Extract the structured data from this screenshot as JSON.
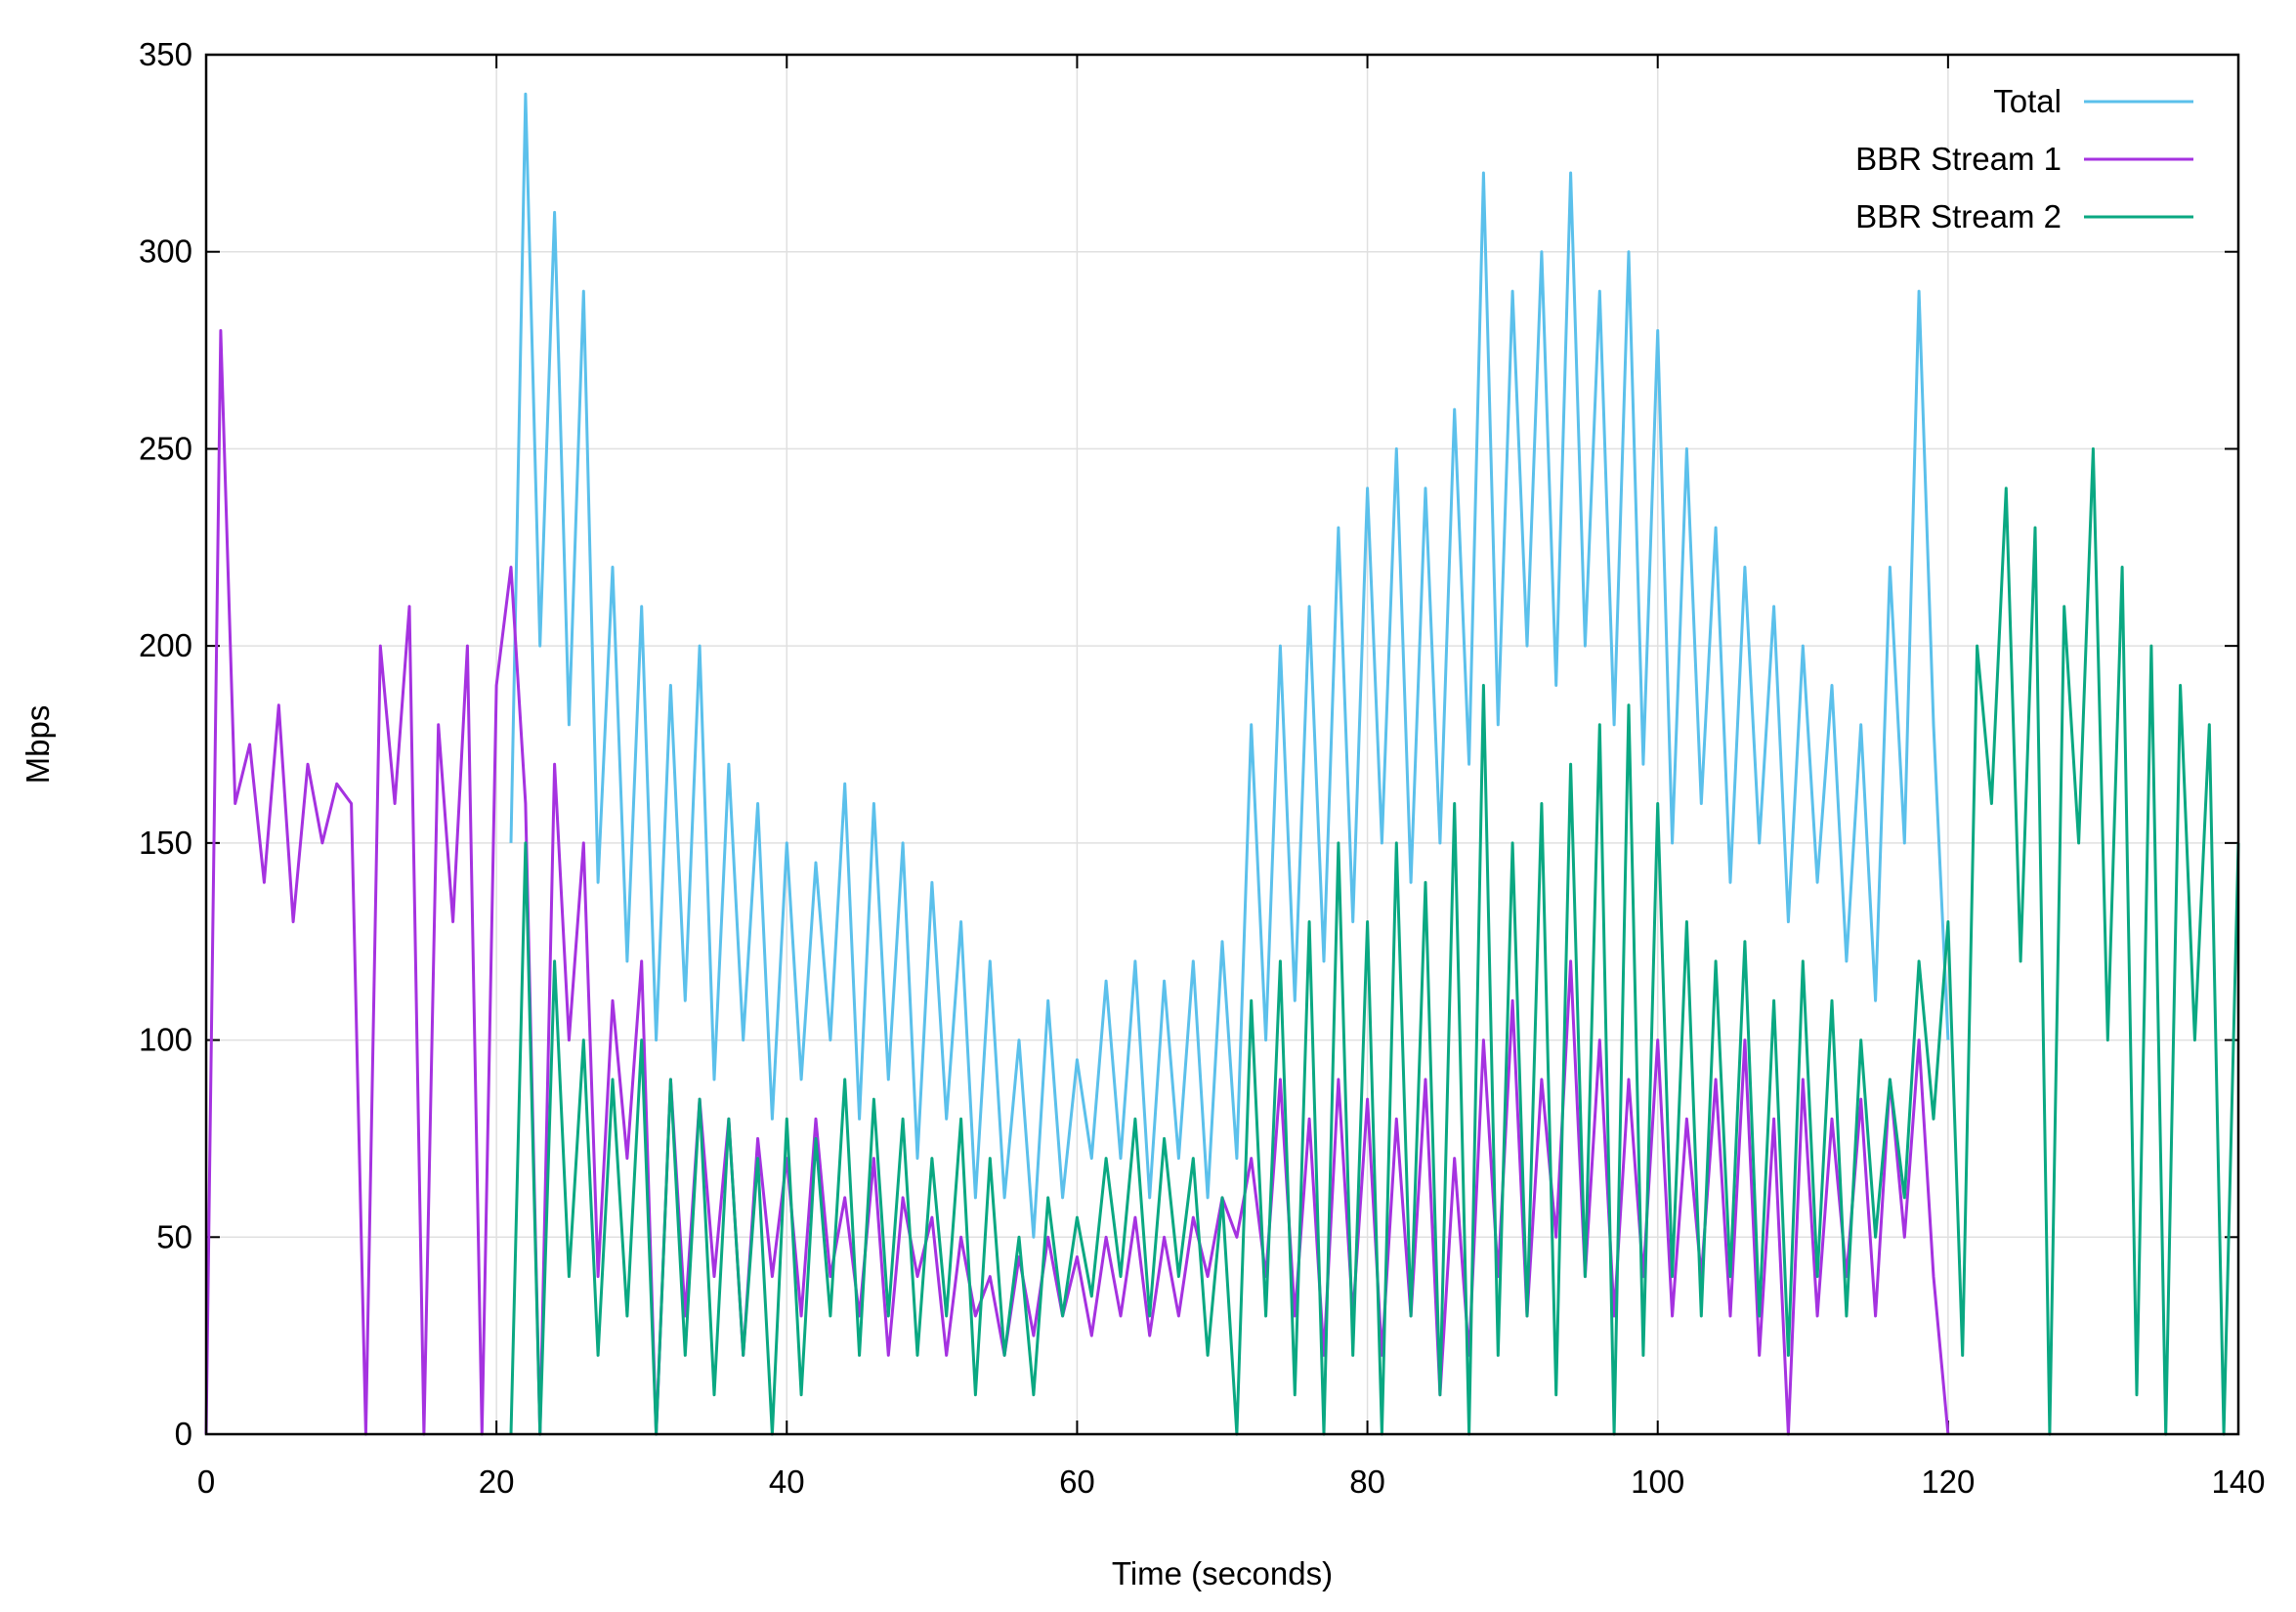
{
  "chart_data": {
    "type": "line",
    "xlabel": "Time (seconds)",
    "ylabel": "Mbps",
    "xlim": [
      0,
      140
    ],
    "ylim": [
      0,
      350
    ],
    "xticks": [
      0,
      20,
      40,
      60,
      80,
      100,
      120,
      140
    ],
    "yticks": [
      0,
      50,
      100,
      150,
      200,
      250,
      300,
      350
    ],
    "grid": true,
    "legend": "upper right",
    "x": [
      0,
      1,
      2,
      3,
      4,
      5,
      6,
      7,
      8,
      9,
      10,
      11,
      12,
      13,
      14,
      15,
      16,
      17,
      18,
      19,
      20,
      21,
      22,
      23,
      24,
      25,
      26,
      27,
      28,
      29,
      30,
      31,
      32,
      33,
      34,
      35,
      36,
      37,
      38,
      39,
      40,
      41,
      42,
      43,
      44,
      45,
      46,
      47,
      48,
      49,
      50,
      51,
      52,
      53,
      54,
      55,
      56,
      57,
      58,
      59,
      60,
      61,
      62,
      63,
      64,
      65,
      66,
      67,
      68,
      69,
      70,
      71,
      72,
      73,
      74,
      75,
      76,
      77,
      78,
      79,
      80,
      81,
      82,
      83,
      84,
      85,
      86,
      87,
      88,
      89,
      90,
      91,
      92,
      93,
      94,
      95,
      96,
      97,
      98,
      99,
      100,
      101,
      102,
      103,
      104,
      105,
      106,
      107,
      108,
      109,
      110,
      111,
      112,
      113,
      114,
      115,
      116,
      117,
      118,
      119,
      120,
      121,
      122,
      123,
      124,
      125,
      126,
      127,
      128,
      129,
      130,
      131,
      132,
      133,
      134,
      135,
      136,
      137,
      138,
      139,
      140
    ],
    "series": [
      {
        "name": "Total",
        "color": "#5bc0eb",
        "values": [
          null,
          null,
          null,
          null,
          null,
          null,
          null,
          null,
          null,
          null,
          null,
          null,
          null,
          null,
          null,
          null,
          null,
          null,
          null,
          null,
          null,
          150,
          340,
          200,
          310,
          180,
          290,
          140,
          220,
          120,
          210,
          100,
          190,
          110,
          200,
          90,
          170,
          100,
          160,
          80,
          150,
          90,
          145,
          100,
          165,
          80,
          160,
          90,
          150,
          70,
          140,
          80,
          130,
          60,
          120,
          60,
          100,
          50,
          110,
          60,
          95,
          70,
          115,
          70,
          120,
          60,
          115,
          70,
          120,
          60,
          125,
          70,
          180,
          100,
          200,
          110,
          210,
          120,
          230,
          130,
          240,
          150,
          250,
          140,
          240,
          150,
          260,
          170,
          320,
          180,
          290,
          200,
          300,
          190,
          320,
          200,
          290,
          180,
          300,
          170,
          280,
          150,
          250,
          160,
          230,
          140,
          220,
          150,
          210,
          130,
          200,
          140,
          190,
          120,
          180,
          110,
          220,
          150,
          290,
          180,
          100,
          null,
          null,
          null,
          null,
          null,
          null,
          null,
          null,
          null,
          null,
          null,
          null,
          null,
          null,
          null,
          null,
          null,
          null,
          null,
          null
        ]
      },
      {
        "name": "BBR Stream 1",
        "color": "#a532e0",
        "values": [
          0,
          280,
          160,
          175,
          140,
          185,
          130,
          170,
          150,
          165,
          160,
          0,
          200,
          160,
          210,
          0,
          180,
          130,
          200,
          0,
          190,
          220,
          160,
          0,
          170,
          100,
          150,
          40,
          110,
          70,
          120,
          0,
          90,
          30,
          85,
          40,
          80,
          20,
          75,
          40,
          70,
          30,
          80,
          40,
          60,
          30,
          70,
          20,
          60,
          40,
          55,
          20,
          50,
          30,
          40,
          20,
          45,
          25,
          50,
          30,
          45,
          25,
          50,
          30,
          55,
          25,
          50,
          30,
          55,
          40,
          60,
          50,
          70,
          40,
          90,
          30,
          80,
          20,
          90,
          30,
          85,
          20,
          80,
          30,
          90,
          10,
          70,
          20,
          100,
          40,
          110,
          30,
          90,
          50,
          120,
          40,
          100,
          30,
          90,
          40,
          100,
          30,
          80,
          40,
          90,
          30,
          100,
          20,
          80,
          0,
          90,
          30,
          80,
          40,
          85,
          30,
          90,
          50,
          100,
          40,
          0,
          null,
          null,
          null,
          null,
          null,
          null,
          null,
          null,
          null,
          null,
          null,
          null,
          null,
          null,
          null,
          null,
          null,
          null,
          null,
          null
        ]
      },
      {
        "name": "BBR Stream 2",
        "color": "#0aa882",
        "values": [
          null,
          null,
          null,
          null,
          null,
          null,
          null,
          null,
          null,
          null,
          null,
          null,
          null,
          null,
          null,
          null,
          null,
          null,
          null,
          null,
          null,
          0,
          150,
          0,
          120,
          40,
          100,
          20,
          90,
          30,
          100,
          0,
          90,
          20,
          85,
          10,
          80,
          20,
          70,
          0,
          80,
          10,
          75,
          30,
          90,
          20,
          85,
          30,
          80,
          20,
          70,
          30,
          80,
          10,
          70,
          20,
          50,
          10,
          60,
          30,
          55,
          35,
          70,
          40,
          80,
          30,
          75,
          40,
          70,
          20,
          60,
          0,
          110,
          30,
          120,
          10,
          130,
          0,
          150,
          20,
          130,
          0,
          150,
          30,
          140,
          10,
          160,
          0,
          190,
          20,
          150,
          30,
          160,
          10,
          170,
          40,
          180,
          0,
          185,
          20,
          160,
          40,
          130,
          30,
          120,
          40,
          125,
          30,
          110,
          20,
          120,
          40,
          110,
          30,
          100,
          50,
          90,
          60,
          120,
          80,
          130,
          20,
          200,
          160,
          240,
          120,
          230,
          0,
          210,
          150,
          250,
          100,
          220,
          10,
          200,
          0,
          190,
          100,
          180,
          0,
          150
        ]
      }
    ]
  }
}
